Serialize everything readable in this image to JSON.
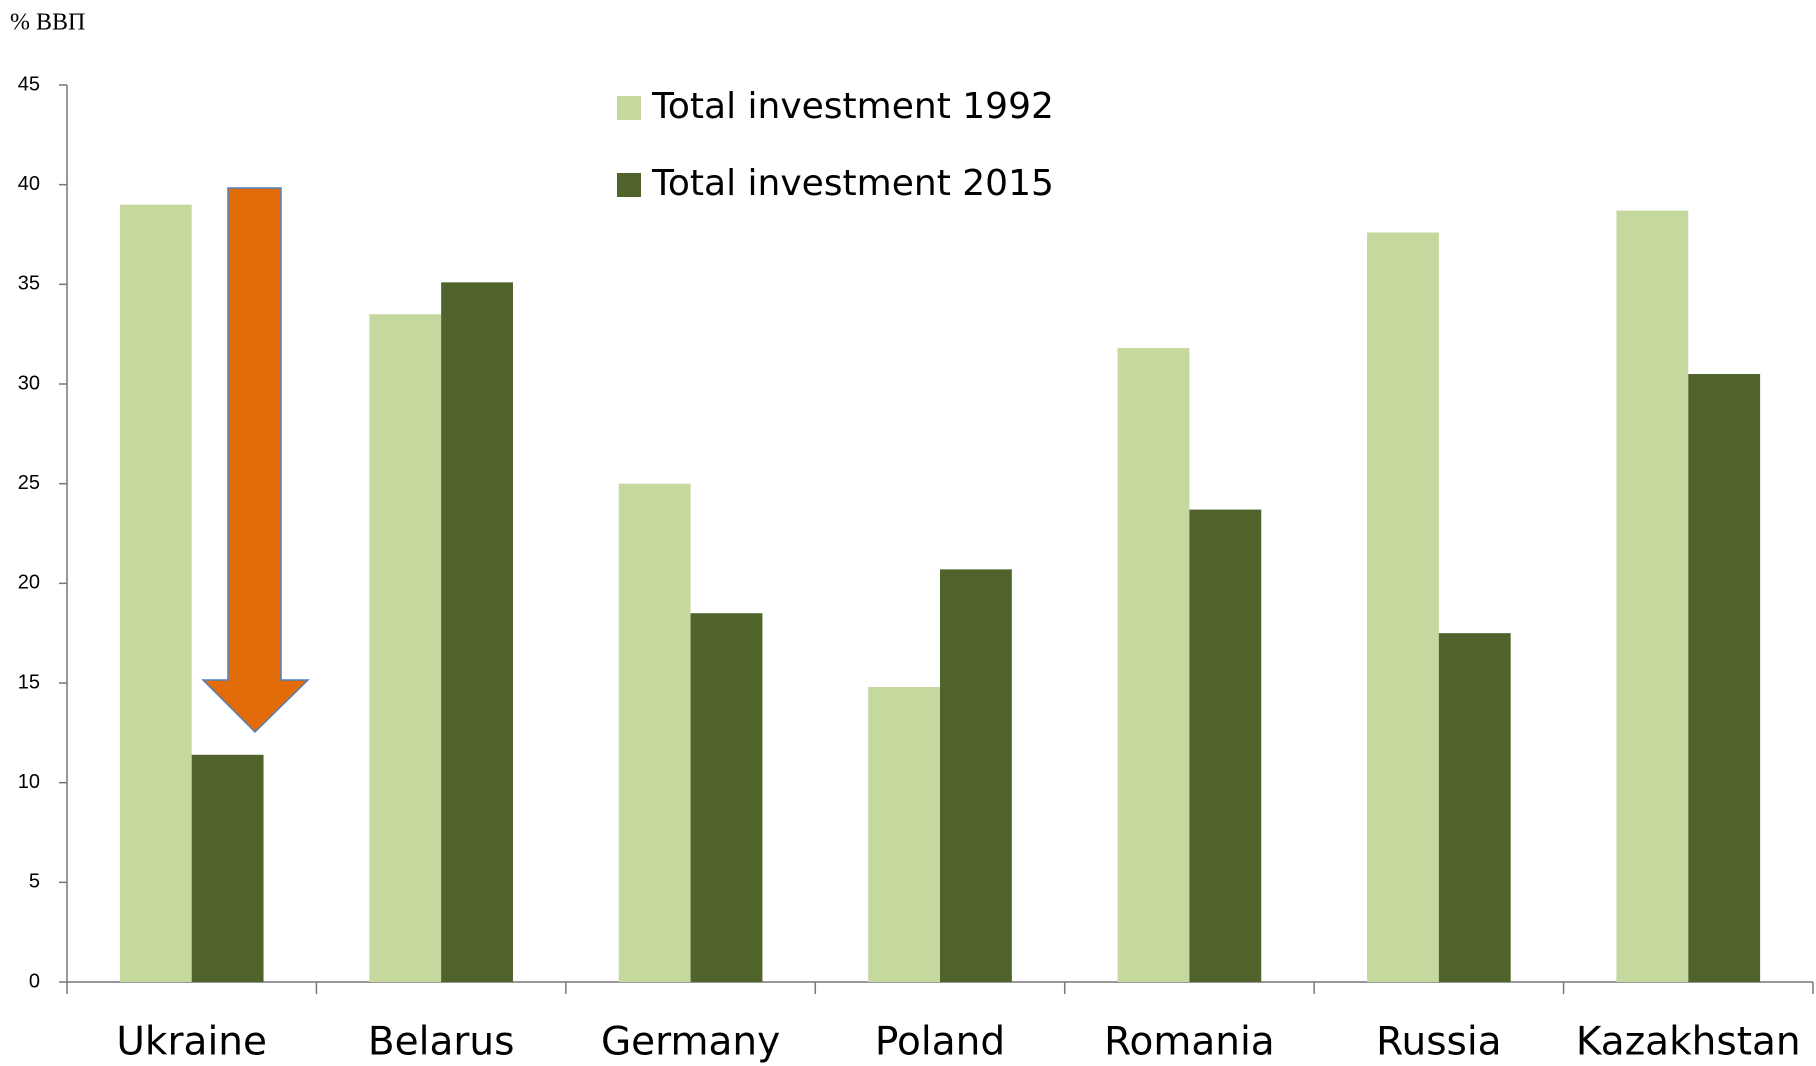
{
  "chart_data": {
    "type": "bar",
    "y_label": "% ВВП",
    "categories": [
      "Ukraine",
      "Belarus",
      "Germany",
      "Poland",
      "Romania",
      "Russia",
      "Kazakhstan"
    ],
    "series": [
      {
        "name": "Total investment 1992",
        "color": "#c5d89d",
        "values": [
          39.0,
          33.5,
          25.0,
          14.8,
          31.8,
          37.6,
          38.7
        ]
      },
      {
        "name": "Total investment 2015",
        "color": "#50632b",
        "values": [
          11.4,
          35.1,
          18.5,
          20.7,
          23.7,
          17.5,
          30.5
        ]
      }
    ],
    "ylim": [
      0,
      45
    ],
    "yticks": [
      0,
      5,
      10,
      15,
      20,
      25,
      30,
      35,
      40,
      45
    ],
    "grid": false
  }
}
